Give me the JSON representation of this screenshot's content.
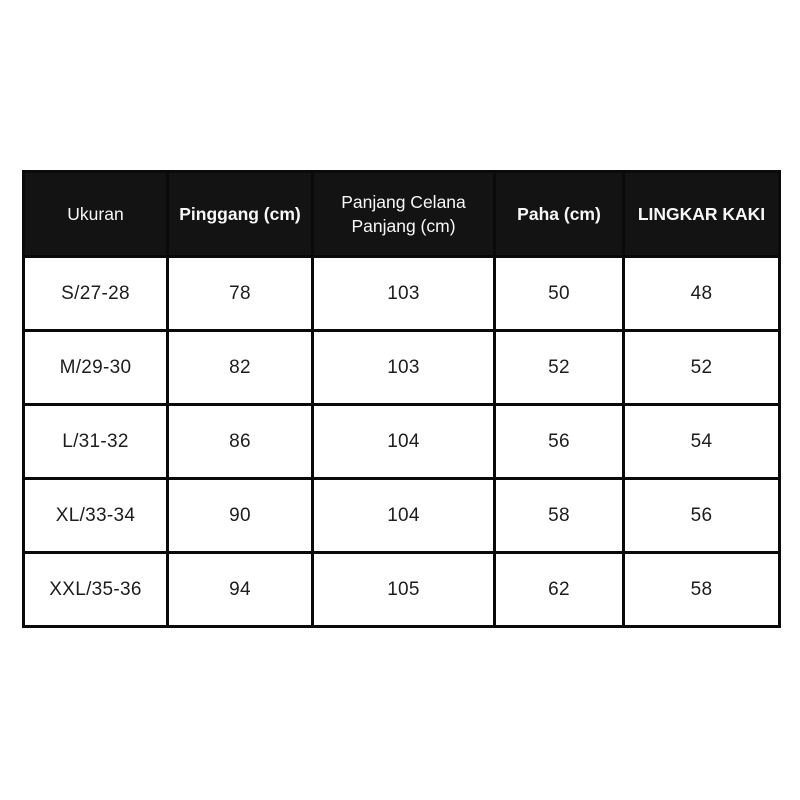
{
  "chart_data": {
    "type": "table",
    "title": "",
    "columns": [
      {
        "label": "Ukuran",
        "bold": false
      },
      {
        "label": "Pinggang (cm)",
        "bold": true
      },
      {
        "label": "Panjang Celana Panjang (cm)",
        "bold": false
      },
      {
        "label": "Paha (cm)",
        "bold": true
      },
      {
        "label": "LINGKAR KAKI",
        "bold": true
      }
    ],
    "rows": [
      [
        "S/27-28",
        "78",
        "103",
        "50",
        "48"
      ],
      [
        "M/29-30",
        "82",
        "103",
        "52",
        "52"
      ],
      [
        "L/31-32",
        "86",
        "104",
        "56",
        "54"
      ],
      [
        "XL/33-34",
        "90",
        "104",
        "58",
        "56"
      ],
      [
        "XXL/35-36",
        "94",
        "105",
        "62",
        "58"
      ]
    ]
  },
  "colors": {
    "page_bg": "#ffffff",
    "header_bg": "#131313",
    "header_text": "#f7f7f7",
    "border": "#0a0a0a",
    "cell_text": "#1d1d1d"
  }
}
